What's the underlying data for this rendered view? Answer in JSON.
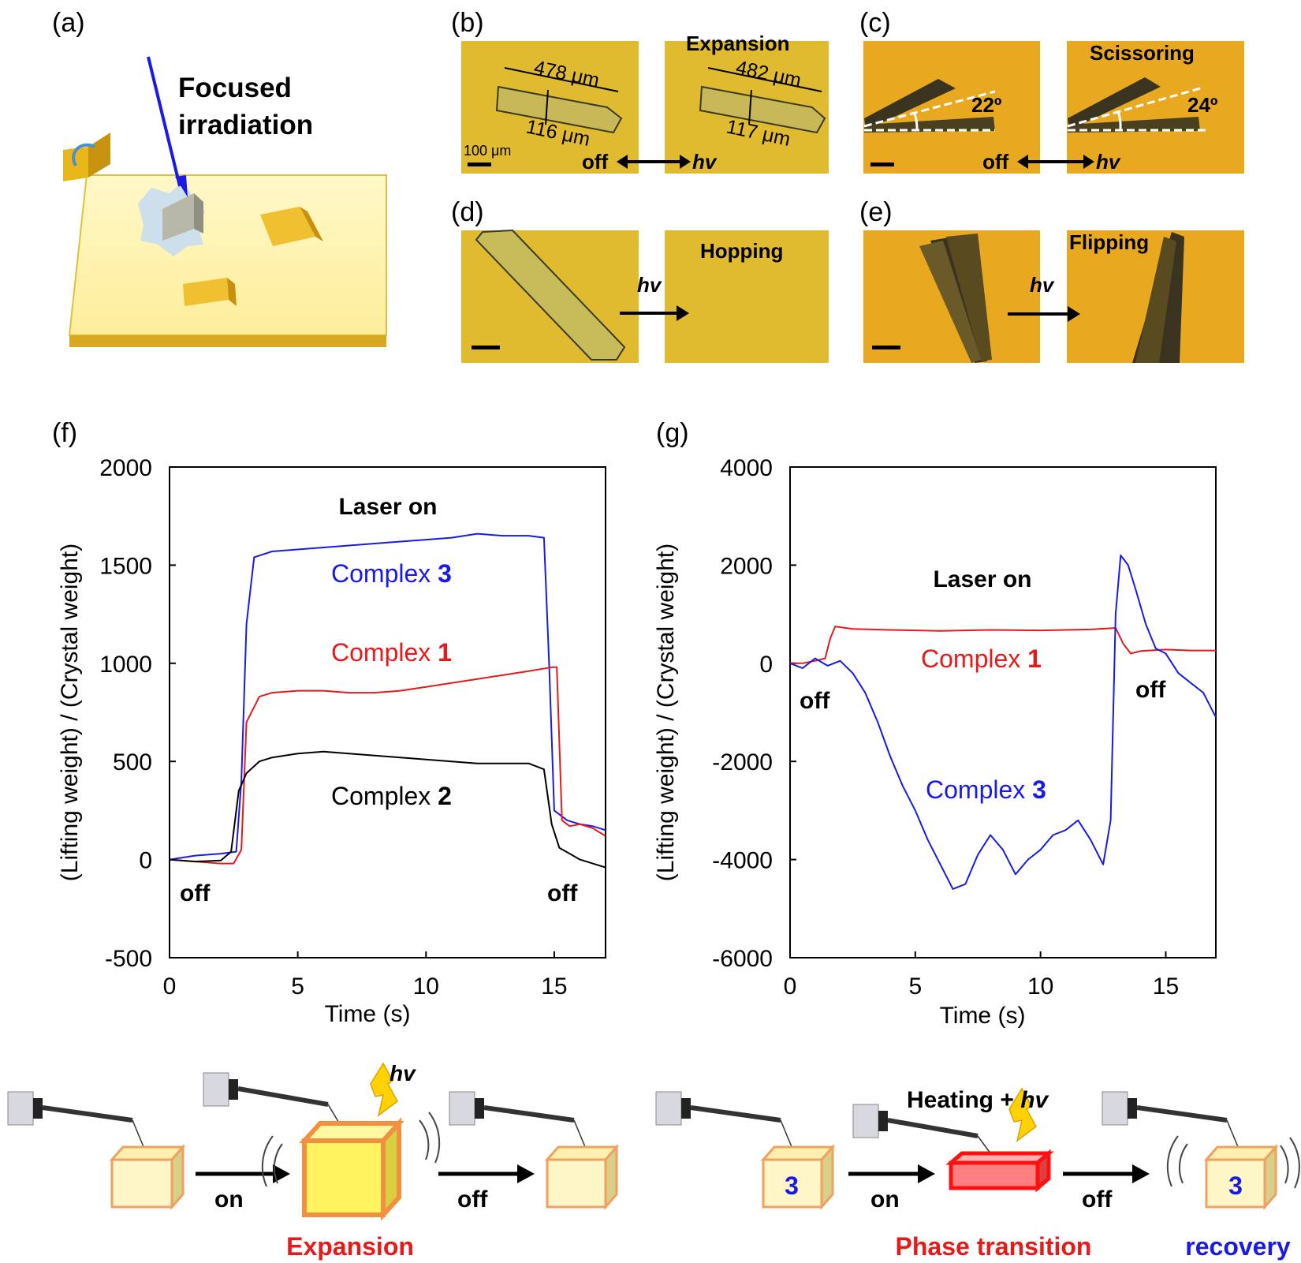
{
  "panel_labels": {
    "a": "(a)",
    "b": "(b)",
    "c": "(c)",
    "d": "(d)",
    "e": "(e)",
    "f": "(f)",
    "g": "(g)"
  },
  "panel_a": {
    "title_line1": "Focused",
    "title_line2": "irradiation"
  },
  "panel_b": {
    "caption": "Expansion",
    "len_before": "478 μm",
    "wid_before": "116 μm",
    "len_after": "482 μm",
    "wid_after": "117 μm",
    "scale": "100 μm",
    "off": "off",
    "hv": "hv"
  },
  "panel_c": {
    "caption": "Scissoring",
    "angle_before": "22º",
    "angle_after": "24º",
    "off": "off",
    "hv": "hv"
  },
  "panel_d": {
    "caption": "Hopping",
    "hv": "hv"
  },
  "panel_e": {
    "caption": "Flipping",
    "hv": "hv"
  },
  "colors": {
    "blue": "#1a1ae6",
    "red": "#e61a1a",
    "black": "#000000",
    "micro": "#e0b928",
    "micro_c": "#e8a820"
  },
  "chart_data": [
    {
      "id": "f",
      "type": "line",
      "title": "Laser on",
      "xlabel": "Time (s)",
      "ylabel": "(Lifting weight) / (Crystal weight)",
      "xlim": [
        0,
        17
      ],
      "ylim": [
        -500,
        2000
      ],
      "xticks": [
        0,
        5,
        10,
        15
      ],
      "yticks": [
        -500,
        0,
        500,
        1000,
        1500,
        2000
      ],
      "annotations": {
        "off_left": "off",
        "off_right": "off"
      },
      "series": [
        {
          "name": "Complex 3",
          "label_text": "Complex ",
          "label_num": "3",
          "color": "#1a1ae6",
          "x": [
            0,
            1,
            2,
            2.6,
            2.8,
            3.0,
            3.3,
            4,
            5,
            6,
            7,
            8,
            9,
            10,
            11,
            12,
            13,
            14,
            14.6,
            14.8,
            15.0,
            15.5,
            16,
            16.5,
            17
          ],
          "y": [
            0,
            20,
            30,
            40,
            400,
            1200,
            1540,
            1570,
            1580,
            1590,
            1600,
            1610,
            1620,
            1630,
            1640,
            1660,
            1650,
            1650,
            1640,
            1000,
            250,
            200,
            180,
            170,
            150
          ]
        },
        {
          "name": "Complex 1",
          "label_text": "Complex ",
          "label_num": "1",
          "color": "#e61a1a",
          "x": [
            0,
            1,
            2,
            2.5,
            2.8,
            3.0,
            3.5,
            4,
            5,
            6,
            7,
            8,
            9,
            10,
            11,
            12,
            13,
            14,
            14.9,
            15.1,
            15.3,
            15.6,
            16,
            16.5,
            17
          ],
          "y": [
            0,
            -10,
            -20,
            -20,
            50,
            700,
            830,
            850,
            860,
            860,
            850,
            850,
            860,
            880,
            900,
            920,
            940,
            960,
            980,
            980,
            200,
            170,
            180,
            160,
            120
          ]
        },
        {
          "name": "Complex 2",
          "label_text": "Complex ",
          "label_num": "2",
          "color": "#000000",
          "x": [
            0,
            1,
            2,
            2.4,
            2.7,
            3.0,
            3.5,
            4,
            5,
            6,
            7,
            8,
            9,
            10,
            11,
            12,
            13,
            14,
            14.6,
            14.9,
            15.2,
            15.6,
            16,
            16.5,
            17
          ],
          "y": [
            0,
            -10,
            -5,
            40,
            350,
            440,
            500,
            520,
            540,
            550,
            540,
            530,
            520,
            510,
            500,
            490,
            490,
            490,
            460,
            180,
            60,
            30,
            0,
            -20,
            -40
          ]
        }
      ]
    },
    {
      "id": "g",
      "type": "line",
      "title": "Laser on",
      "xlabel": "Time (s)",
      "ylabel": "(Lifting weight) / (Crystal weight)",
      "xlim": [
        0,
        17
      ],
      "ylim": [
        -6000,
        4000
      ],
      "xticks": [
        0,
        5,
        10,
        15
      ],
      "yticks": [
        -6000,
        -4000,
        -2000,
        0,
        2000,
        4000
      ],
      "annotations": {
        "off_left": "off",
        "off_right": "off"
      },
      "series": [
        {
          "name": "Complex 1",
          "label_text": "Complex ",
          "label_num": "1",
          "color": "#e61a1a",
          "x": [
            0,
            0.5,
            1.0,
            1.4,
            1.6,
            1.8,
            2.5,
            4,
            6,
            8,
            10,
            12,
            13.0,
            13.3,
            13.6,
            14,
            15,
            16,
            17
          ],
          "y": [
            0,
            0,
            50,
            100,
            500,
            750,
            700,
            680,
            660,
            680,
            670,
            690,
            720,
            400,
            200,
            250,
            280,
            260,
            260
          ]
        },
        {
          "name": "Complex 3",
          "label_text": "Complex ",
          "label_num": "3",
          "color": "#1a1ae6",
          "x": [
            0,
            0.5,
            1,
            1.5,
            2,
            2.5,
            3,
            3.5,
            4,
            4.5,
            5,
            5.5,
            6,
            6.5,
            7,
            7.5,
            8,
            8.5,
            9,
            9.5,
            10,
            10.5,
            11,
            11.5,
            12,
            12.5,
            12.8,
            13.0,
            13.2,
            13.5,
            13.8,
            14.2,
            14.6,
            15.0,
            15.5,
            16,
            16.5,
            17
          ],
          "y": [
            0,
            -100,
            100,
            -50,
            50,
            -200,
            -600,
            -1200,
            -1900,
            -2500,
            -3000,
            -3600,
            -4100,
            -4600,
            -4500,
            -3900,
            -3500,
            -3800,
            -4300,
            -4000,
            -3800,
            -3500,
            -3400,
            -3200,
            -3600,
            -4100,
            -3200,
            1000,
            2200,
            2000,
            1500,
            800,
            300,
            200,
            -200,
            -400,
            -600,
            -1100
          ]
        }
      ]
    }
  ],
  "schematic_f": {
    "on": "on",
    "off": "off",
    "hv": "hv",
    "caption": "Expansion"
  },
  "schematic_g": {
    "on": "on",
    "off": "off",
    "heating": "Heating + ",
    "hv": "hv",
    "num": "3",
    "caption_phase": "Phase transition",
    "caption_recovery": "recovery"
  }
}
